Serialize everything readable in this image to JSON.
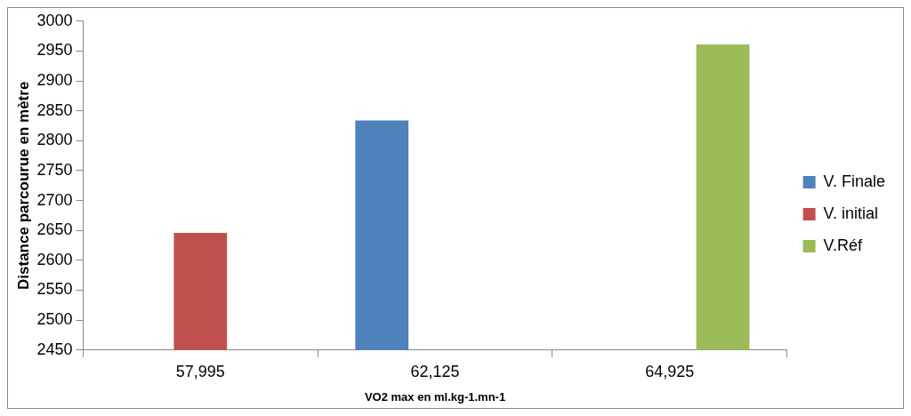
{
  "chart_data": {
    "type": "bar",
    "xlabel": "VO2 max en ml.kg-1.mn-1",
    "ylabel": "Distance parcourue en mètre",
    "categories": [
      "57,995",
      "62,125",
      "64,925"
    ],
    "series": [
      {
        "name": "V. Finale",
        "color": "#4f81bd",
        "values": [
          null,
          2834,
          null
        ]
      },
      {
        "name": "V. initial",
        "color": "#c0504d",
        "values": [
          2646,
          null,
          null
        ]
      },
      {
        "name": "V.Réf",
        "color": "#9bbb59",
        "values": [
          null,
          null,
          2961
        ]
      }
    ],
    "ylim": [
      2450,
      3000
    ],
    "yticks": [
      2450,
      2500,
      2550,
      2600,
      2650,
      2700,
      2750,
      2800,
      2850,
      2900,
      2950,
      3000
    ],
    "grid": false,
    "legend": "right"
  }
}
